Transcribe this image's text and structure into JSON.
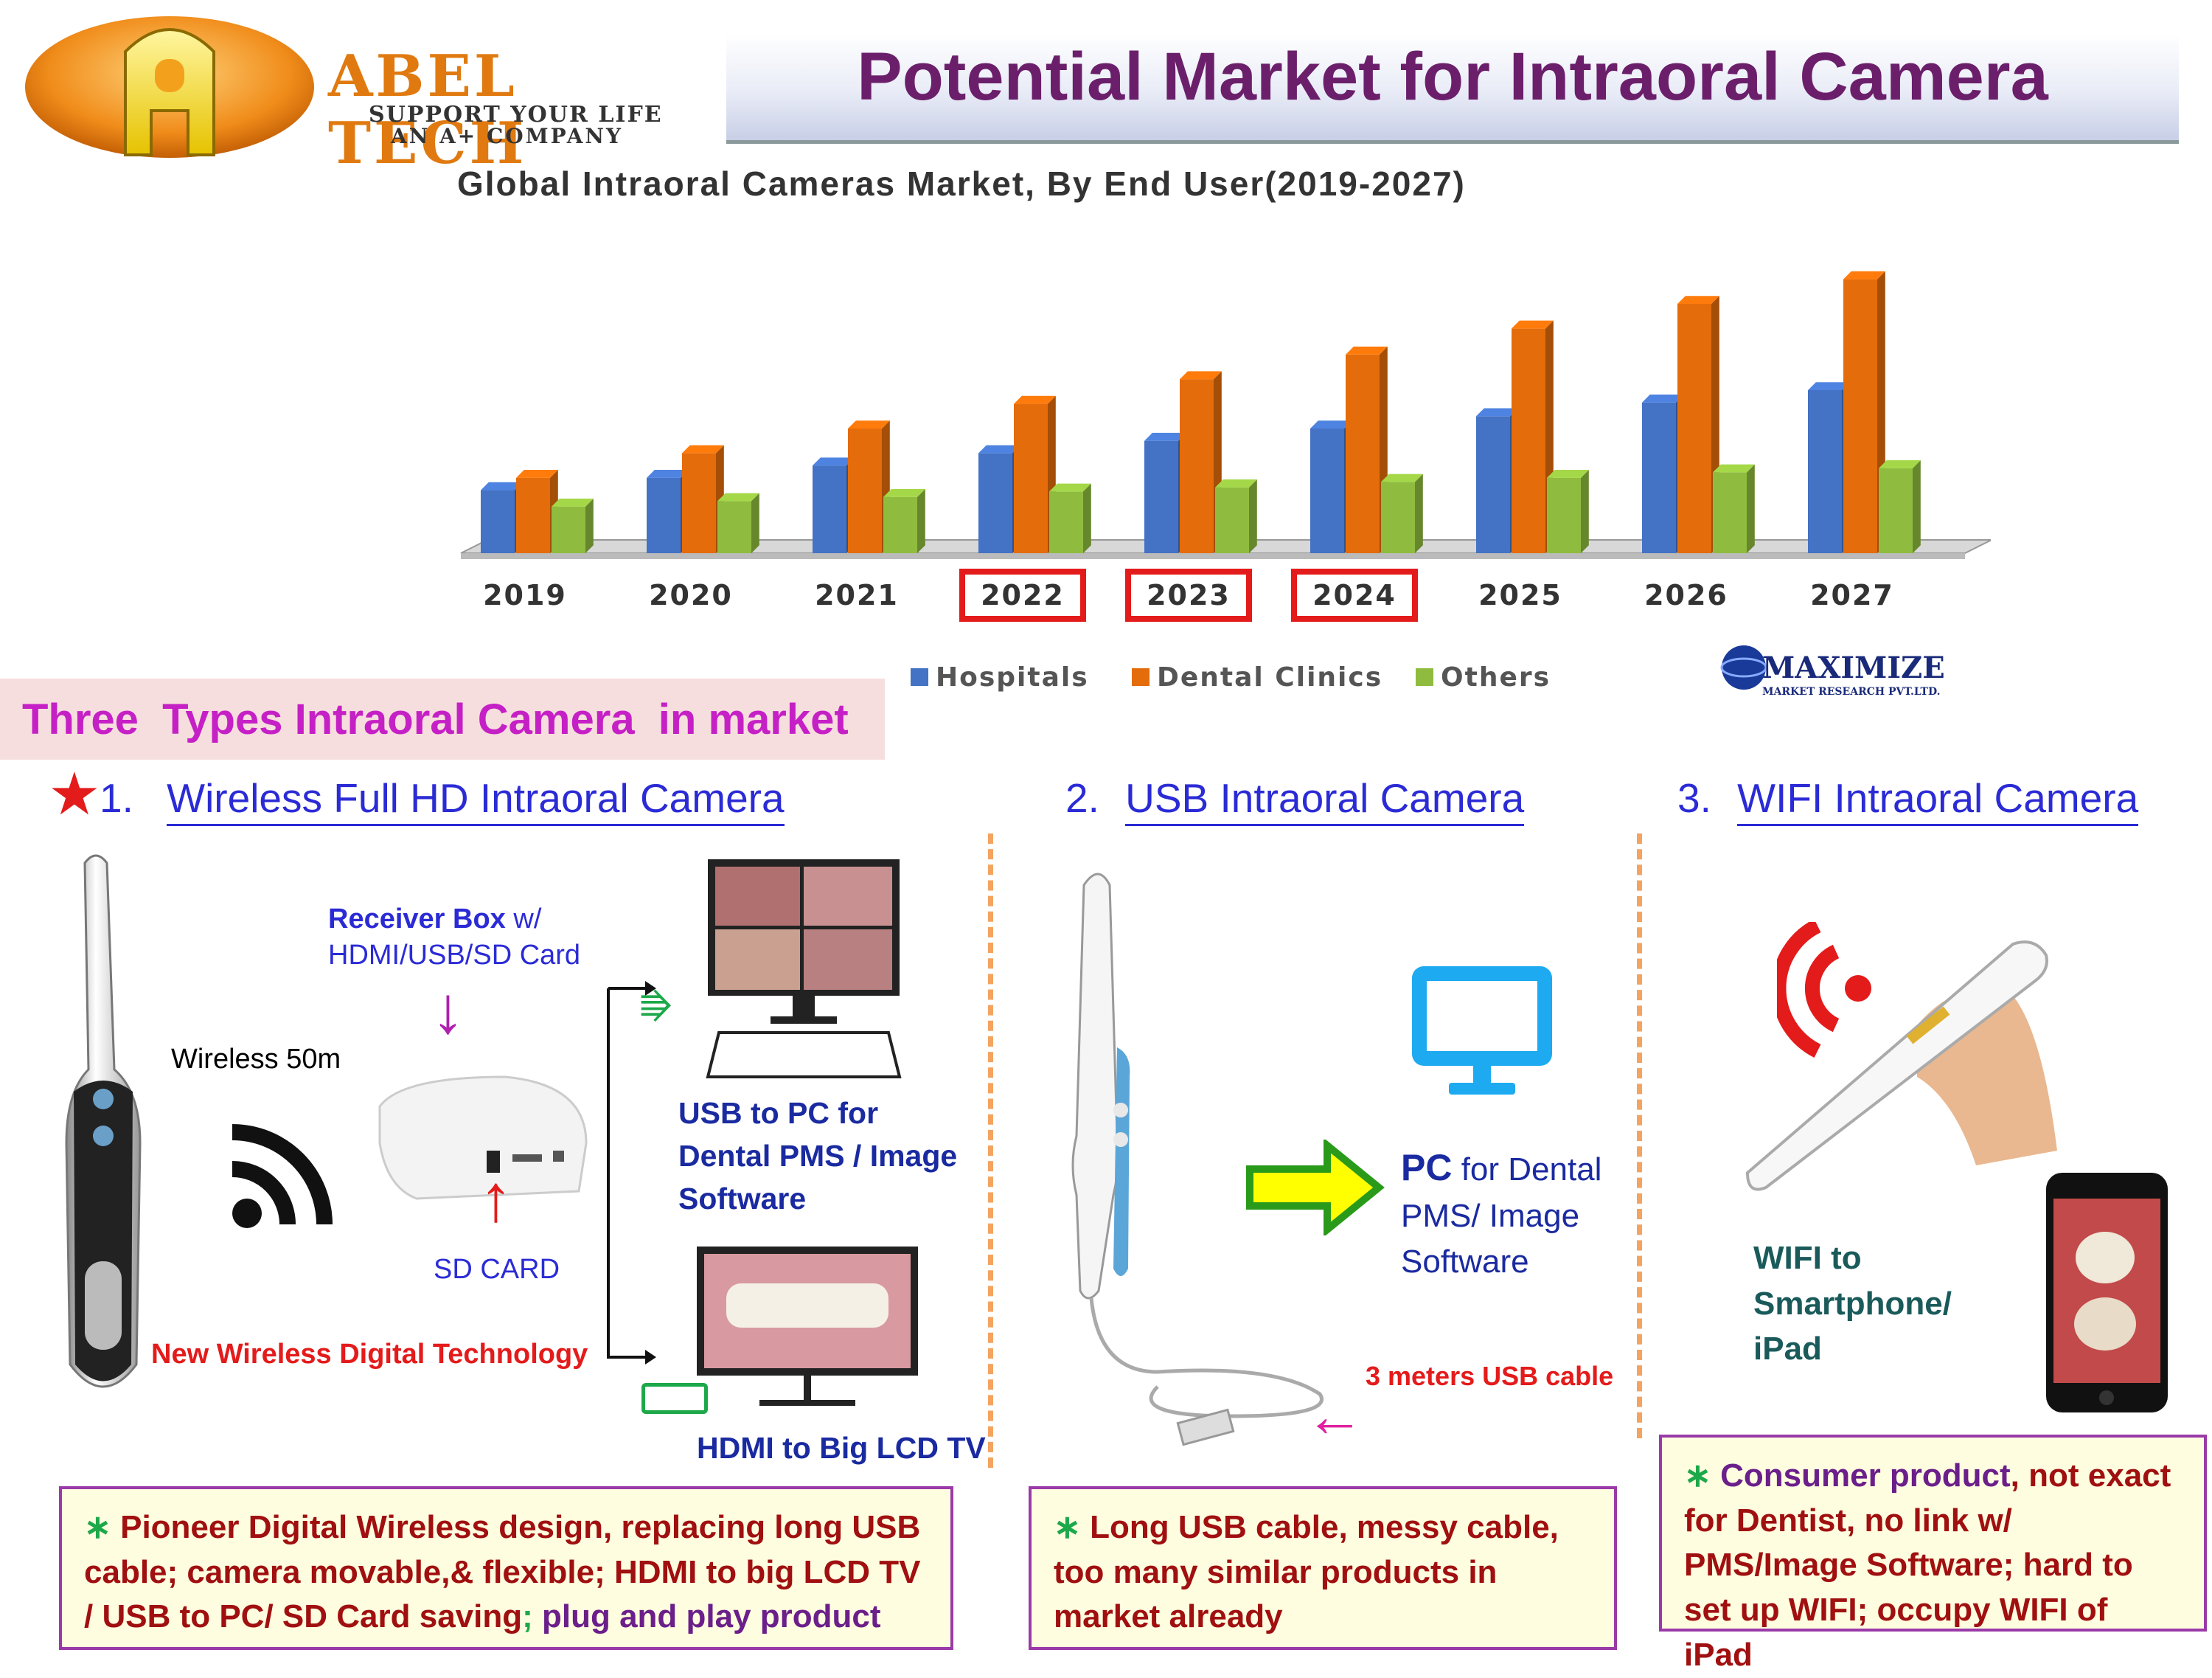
{
  "logo": {
    "brand": "ABEL TECH",
    "tagline1": "SUPPORT YOUR LIFE",
    "tagline2": "AN A+ COMPANY",
    "letter": "A"
  },
  "page_title": "Potential Market for Intraoral Camera",
  "chart_data": {
    "type": "bar",
    "title": "Global Intraoral Cameras Market, By End User(2019-2027)",
    "categories": [
      "2019",
      "2020",
      "2021",
      "2022",
      "2023",
      "2024",
      "2025",
      "2026",
      "2027"
    ],
    "highlighted_categories": [
      "2022",
      "2023",
      "2024"
    ],
    "series": [
      {
        "name": "Hospitals",
        "color": "#4472c4",
        "values": [
          46,
          55,
          64,
          73,
          82,
          91,
          100,
          110,
          119
        ]
      },
      {
        "name": "Dental Clinics",
        "color": "#e46c0a",
        "values": [
          55,
          73,
          91,
          109,
          127,
          145,
          164,
          182,
          200
        ]
      },
      {
        "name": "Others",
        "color": "#8fbc3f",
        "values": [
          34,
          38,
          41,
          45,
          48,
          52,
          55,
          59,
          62
        ]
      }
    ],
    "ylim": [
      0,
      210
    ],
    "legend": "bottom",
    "source": "MAXIMIZE",
    "source_sub": "MARKET RESEARCH PVT.LTD."
  },
  "types_heading": "Three  Types Intraoral Camera  in market",
  "section1": {
    "number": "1.",
    "title": "Wireless Full HD Intraoral Camera",
    "receiver_bold": "Receiver Box",
    "receiver_rest": " w/",
    "receiver_line2": "HDMI/USB/SD Card",
    "wireless": "Wireless 50m",
    "sd_card": "SD CARD",
    "new_tech": "New Wireless Digital Technology",
    "usb_pc": [
      "USB to PC for",
      "Dental PMS / Image",
      "Software"
    ],
    "hdmi": "HDMI to Big LCD TV",
    "box_bullet": "∗",
    "box_red": " Pioneer Digital Wireless design,  replacing long USB cable; camera movable,& flexible; HDMI to big LCD TV / USB to PC/ SD Card saving",
    "box_sep": ";",
    "box_purple": " plug and play product"
  },
  "section2": {
    "number": "2.",
    "title": "USB Intraoral Camera",
    "pc_bold": "PC",
    "pc_rest": " for Dental",
    "pc_line2": "PMS/ Image",
    "pc_line3": "Software",
    "cable": "3 meters USB cable",
    "box_bullet": "∗",
    "box_text": " Long USB cable, messy cable, too many similar products in market already"
  },
  "section3": {
    "number": "3.",
    "title": "WIFI Intraoral Camera",
    "wifi_lines": [
      "WIFI to",
      "Smartphone/",
      "iPad"
    ],
    "box_bullet": "∗",
    "box_purple": " Consumer product",
    "box_red": ", not exact for Dentist, no link w/ PMS/Image Software; hard to set up WIFI; occupy WIFI of iPad"
  },
  "colors": {
    "title": "#6b1f6b",
    "section_blue": "#2b2bd6",
    "red": "#e41b1b",
    "box_border": "#9a3aa8",
    "box_bg": "#fffde0"
  }
}
